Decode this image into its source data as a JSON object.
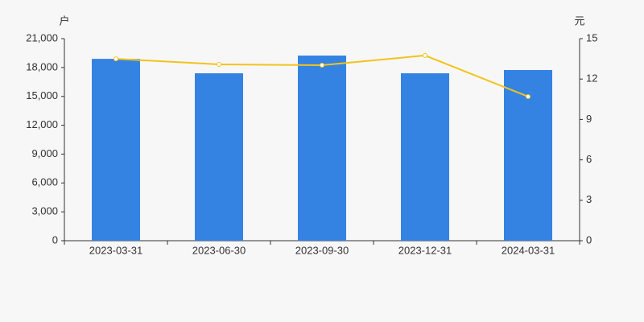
{
  "chart_data": {
    "type": "bar",
    "y_unit": "户",
    "y2_unit": "元",
    "categories": [
      "2023-03-31",
      "2023-06-30",
      "2023-09-30",
      "2023-12-31",
      "2024-03-31"
    ],
    "series": [
      {
        "type": "bar",
        "color": "#3483e3",
        "values": [
          18900,
          17400,
          19240,
          17400,
          17740
        ]
      },
      {
        "type": "line",
        "axis": "y2",
        "color": "#f2c31b",
        "values": [
          13.5,
          13.09,
          13.03,
          13.75,
          10.7
        ]
      }
    ],
    "ylim": [
      0,
      21000
    ],
    "yticks": [
      0,
      {
        "value": 3000,
        "label": "3,000"
      },
      {
        "value": 6000,
        "label": "6,000"
      },
      {
        "value": 9000,
        "label": "9,000"
      },
      {
        "value": 12000,
        "label": "12,000"
      },
      {
        "value": 15000,
        "label": "15,000"
      },
      {
        "value": 18000,
        "label": "18,000"
      },
      {
        "value": 21000,
        "label": "21,000"
      }
    ],
    "y2lim": [
      0,
      15
    ],
    "y2ticks": [
      0,
      3,
      6,
      9,
      12,
      15
    ]
  }
}
